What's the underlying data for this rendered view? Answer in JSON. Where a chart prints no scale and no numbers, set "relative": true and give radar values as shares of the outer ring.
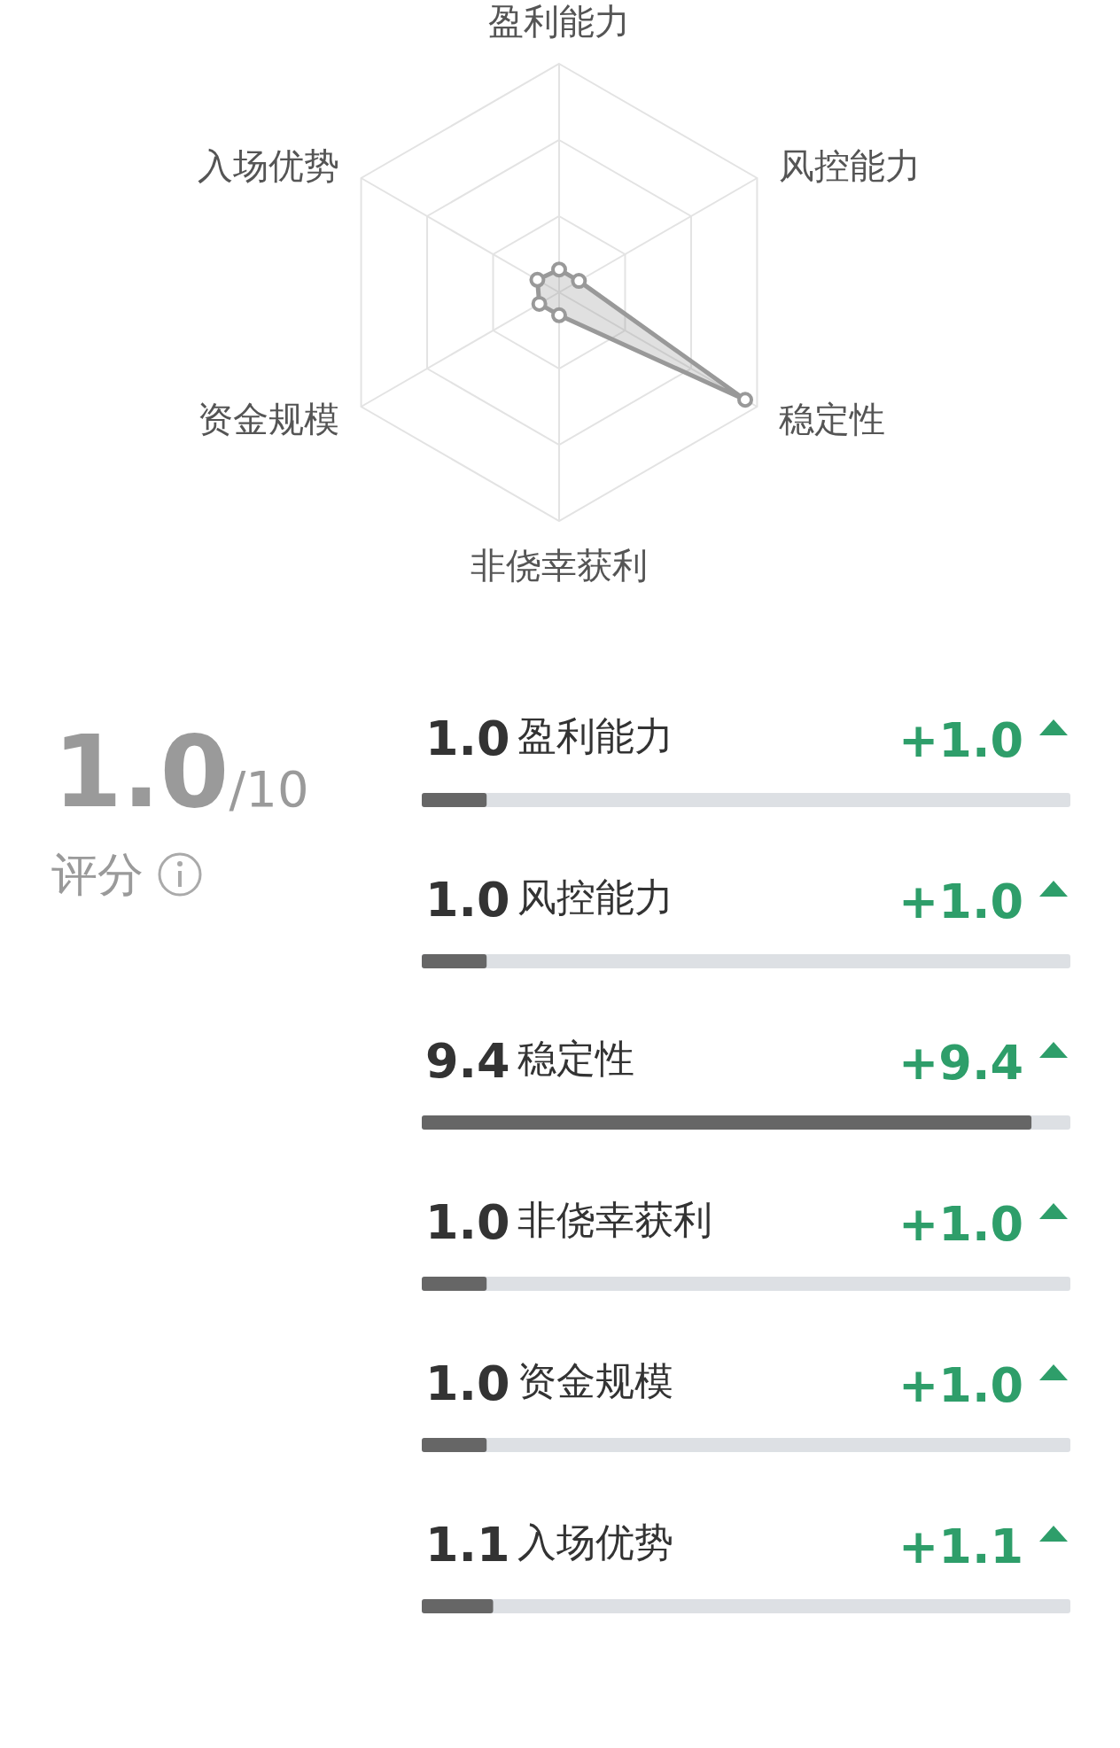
{
  "chart_data": [
    {
      "type": "radar",
      "relative": true,
      "grid": true,
      "marker": "circle",
      "categories": [
        "盈利能力",
        "风控能力",
        "稳定性",
        "非侥幸获利",
        "资金规模",
        "入场优势"
      ],
      "series": [
        {
          "color": "#999999",
          "values": [
            0.1,
            0.1,
            0.94,
            0.1,
            0.1,
            0.11
          ]
        }
      ]
    },
    {
      "type": "other",
      "annotations": [
        "1.0",
        "/10",
        "评分"
      ]
    },
    {
      "type": "bar",
      "orientation": "horizontal",
      "categories": [
        "盈利能力",
        "风控能力",
        "稳定性",
        "非侥幸获利",
        "资金规模",
        "入场优势"
      ],
      "values": [
        1.0,
        1.0,
        9.4,
        1.0,
        1.0,
        1.1
      ],
      "value_labels": [
        "1.0",
        "1.0",
        "9.4",
        "1.0",
        "1.0",
        "1.1"
      ],
      "color": "#666666",
      "xlim": [
        0,
        10
      ],
      "tick_labels": false,
      "annotations": [
        "+1.0",
        "+1.0",
        "+9.4",
        "+1.0",
        "+1.0",
        "+1.1"
      ]
    }
  ]
}
